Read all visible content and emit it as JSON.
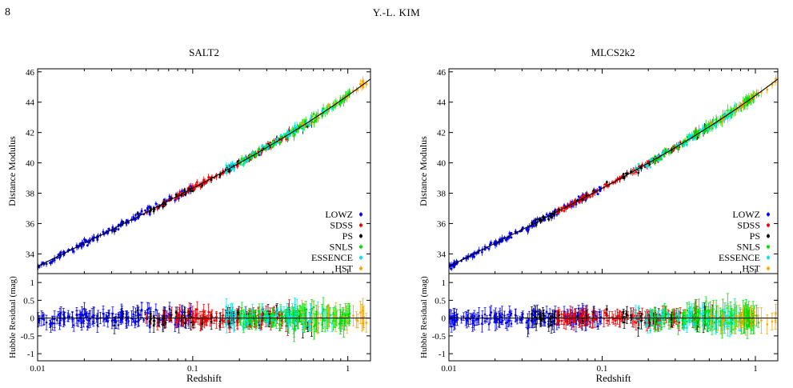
{
  "header": {
    "page_number": "8",
    "running_head": "Y.-L. KIM"
  },
  "colors": {
    "LOWZ": "#0000ee",
    "SDSS": "#ee0000",
    "PS": "#000000",
    "SNLS": "#00dd00",
    "ESSENCE": "#00e5e5",
    "HST": "#ffa500",
    "fit_line": "#000000"
  },
  "chart_data": [
    {
      "type": "scatter",
      "title": "SALT2",
      "xlabel": "Redshift",
      "xscale": "log",
      "xlim": [
        0.01,
        1.4
      ],
      "xticks": [
        "0.01",
        "0.1",
        "1"
      ],
      "panels": {
        "top": {
          "ylabel": "Distance Modulus",
          "ylim": [
            32.7,
            46.2
          ],
          "yticks": [
            "34",
            "36",
            "38",
            "40",
            "42",
            "44",
            "46"
          ]
        },
        "bottom": {
          "ylabel": "Hubble Residual (mag)",
          "ylim": [
            -1.2,
            1.25
          ],
          "yticks": [
            "-1",
            "-0.5",
            "0",
            "0.5",
            "1"
          ]
        }
      },
      "legend": {
        "position": "bottom-right",
        "entries": [
          "LOWZ",
          "SDSS",
          "PS",
          "SNLS",
          "ESSENCE",
          "HST"
        ]
      },
      "series": [
        {
          "name": "LOWZ",
          "z_range": [
            0.01,
            0.1
          ],
          "count": 170,
          "residual_scatter": 0.28
        },
        {
          "name": "SDSS",
          "z_range": [
            0.05,
            0.42
          ],
          "count": 150,
          "residual_scatter": 0.26
        },
        {
          "name": "PS",
          "z_range": [
            0.03,
            0.6
          ],
          "count": 55,
          "residual_scatter": 0.3
        },
        {
          "name": "SNLS",
          "z_range": [
            0.2,
            1.05
          ],
          "count": 140,
          "residual_scatter": 0.3
        },
        {
          "name": "ESSENCE",
          "z_range": [
            0.16,
            0.8
          ],
          "count": 60,
          "residual_scatter": 0.32
        },
        {
          "name": "HST",
          "z_range": [
            0.5,
            1.4
          ],
          "count": 25,
          "residual_scatter": 0.25
        }
      ]
    },
    {
      "type": "scatter",
      "title": "MLCS2k2",
      "xlabel": "Redshift",
      "xscale": "log",
      "xlim": [
        0.01,
        1.4
      ],
      "xticks": [
        "0.01",
        "0.1",
        "1"
      ],
      "panels": {
        "top": {
          "ylabel": "Distance Modulus",
          "ylim": [
            32.7,
            46.2
          ],
          "yticks": [
            "34",
            "36",
            "38",
            "40",
            "42",
            "44",
            "46"
          ]
        },
        "bottom": {
          "ylabel": "Hubble Residual (mag)",
          "ylim": [
            -1.2,
            1.25
          ],
          "yticks": [
            "-1",
            "-0.5",
            "0",
            "0.5",
            "1"
          ]
        }
      },
      "legend": {
        "position": "bottom-right",
        "entries": [
          "LOWZ",
          "SDSS",
          "PS",
          "SNLS",
          "ESSENCE",
          "HST"
        ]
      },
      "series": [
        {
          "name": "LOWZ",
          "z_range": [
            0.01,
            0.1
          ],
          "count": 160,
          "residual_scatter": 0.25
        },
        {
          "name": "SDSS",
          "z_range": [
            0.05,
            0.42
          ],
          "count": 150,
          "residual_scatter": 0.2
        },
        {
          "name": "PS",
          "z_range": [
            0.03,
            0.6
          ],
          "count": 55,
          "residual_scatter": 0.28
        },
        {
          "name": "SNLS",
          "z_range": [
            0.2,
            1.05
          ],
          "count": 140,
          "residual_scatter": 0.32
        },
        {
          "name": "ESSENCE",
          "z_range": [
            0.16,
            0.8
          ],
          "count": 60,
          "residual_scatter": 0.3
        },
        {
          "name": "HST",
          "z_range": [
            0.5,
            1.4
          ],
          "count": 25,
          "residual_scatter": 0.22
        }
      ]
    }
  ]
}
